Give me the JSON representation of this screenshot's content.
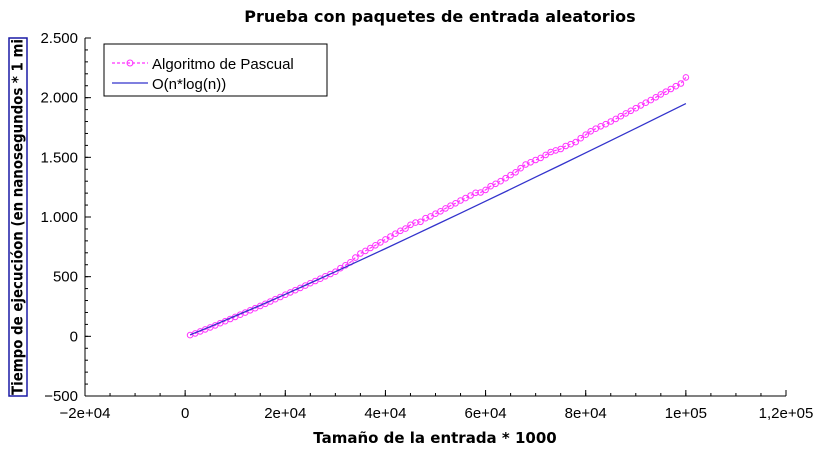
{
  "chart_data": {
    "type": "line",
    "title": "Prueba con paquetes de entrada aleatorios",
    "xlabel": "Tamaño de la entrada * 1000",
    "ylabel": "Tiempo de ejecucióon (en nanosegundos * 1 mi",
    "xlim": [
      -20000,
      120000
    ],
    "ylim": [
      -500,
      2500
    ],
    "x_ticks": [
      -20000,
      20000,
      40000,
      60000,
      80000,
      100000,
      120000
    ],
    "x_tick_labels": [
      "−2e+04",
      "2e+04",
      "4e+04",
      "6e+04",
      "8e+04",
      "1e+05",
      "1,2e+05"
    ],
    "x_zero_tick": 0,
    "x_zero_label": "0",
    "y_ticks": [
      -500,
      0,
      500,
      1000,
      1500,
      2000,
      2500
    ],
    "y_tick_labels": [
      "−500",
      "0",
      "500",
      "1.000",
      "1.500",
      "2.000",
      "2.500"
    ],
    "legend_position": "top-left",
    "grid": false,
    "series": [
      {
        "name": "Algoritmo de Pascual",
        "color": "#ff33ff",
        "style": "dashed-circles",
        "x": [
          1000,
          2000,
          3000,
          4000,
          5000,
          6000,
          7000,
          8000,
          9000,
          10000,
          11000,
          12000,
          13000,
          14000,
          15000,
          16000,
          17000,
          18000,
          19000,
          20000,
          21000,
          22000,
          23000,
          24000,
          25000,
          26000,
          27000,
          28000,
          29000,
          30000,
          31000,
          32000,
          33000,
          34000,
          35000,
          36000,
          37000,
          38000,
          39000,
          40000,
          41000,
          42000,
          43000,
          44000,
          45000,
          46000,
          47000,
          48000,
          49000,
          50000,
          51000,
          52000,
          53000,
          54000,
          55000,
          56000,
          57000,
          58000,
          59000,
          60000,
          61000,
          62000,
          63000,
          64000,
          65000,
          66000,
          67000,
          68000,
          69000,
          70000,
          71000,
          72000,
          73000,
          74000,
          75000,
          76000,
          77000,
          78000,
          79000,
          80000,
          81000,
          82000,
          83000,
          84000,
          85000,
          86000,
          87000,
          88000,
          89000,
          90000,
          91000,
          92000,
          93000,
          94000,
          95000,
          96000,
          97000,
          98000,
          99000,
          100000
        ],
        "y": [
          10,
          25,
          41,
          58,
          75,
          92,
          110,
          127,
          145,
          163,
          181,
          199,
          218,
          236,
          255,
          273,
          292,
          311,
          330,
          349,
          368,
          387,
          406,
          425,
          445,
          464,
          483,
          503,
          522,
          542,
          571,
          595,
          620,
          660,
          694,
          716,
          740,
          763,
          787,
          812,
          837,
          860,
          884,
          903,
          935,
          953,
          960,
          990,
          1005,
          1028,
          1048,
          1072,
          1095,
          1115,
          1138,
          1158,
          1180,
          1203,
          1205,
          1227,
          1258,
          1278,
          1300,
          1325,
          1351,
          1375,
          1409,
          1440,
          1458,
          1478,
          1495,
          1520,
          1545,
          1558,
          1570,
          1595,
          1610,
          1628,
          1660,
          1690,
          1718,
          1740,
          1760,
          1778,
          1800,
          1822,
          1845,
          1868,
          1890,
          1912,
          1935,
          1958,
          1980,
          2003,
          2027,
          2050,
          2073,
          2096,
          2119,
          2170
        ]
      },
      {
        "name": "O(n*log(n))",
        "color": "#3333cc",
        "style": "solid",
        "x": [
          1000,
          5000,
          10000,
          15000,
          20000,
          25000,
          30000,
          35000,
          40000,
          45000,
          50000,
          55000,
          60000,
          65000,
          70000,
          75000,
          80000,
          85000,
          90000,
          95000,
          100000
        ],
        "y": [
          13,
          81,
          170,
          260,
          352,
          447,
          542,
          638,
          735,
          834,
          933,
          1032,
          1132,
          1233,
          1334,
          1436,
          1538,
          1640,
          1743,
          1847,
          1950
        ]
      }
    ]
  }
}
